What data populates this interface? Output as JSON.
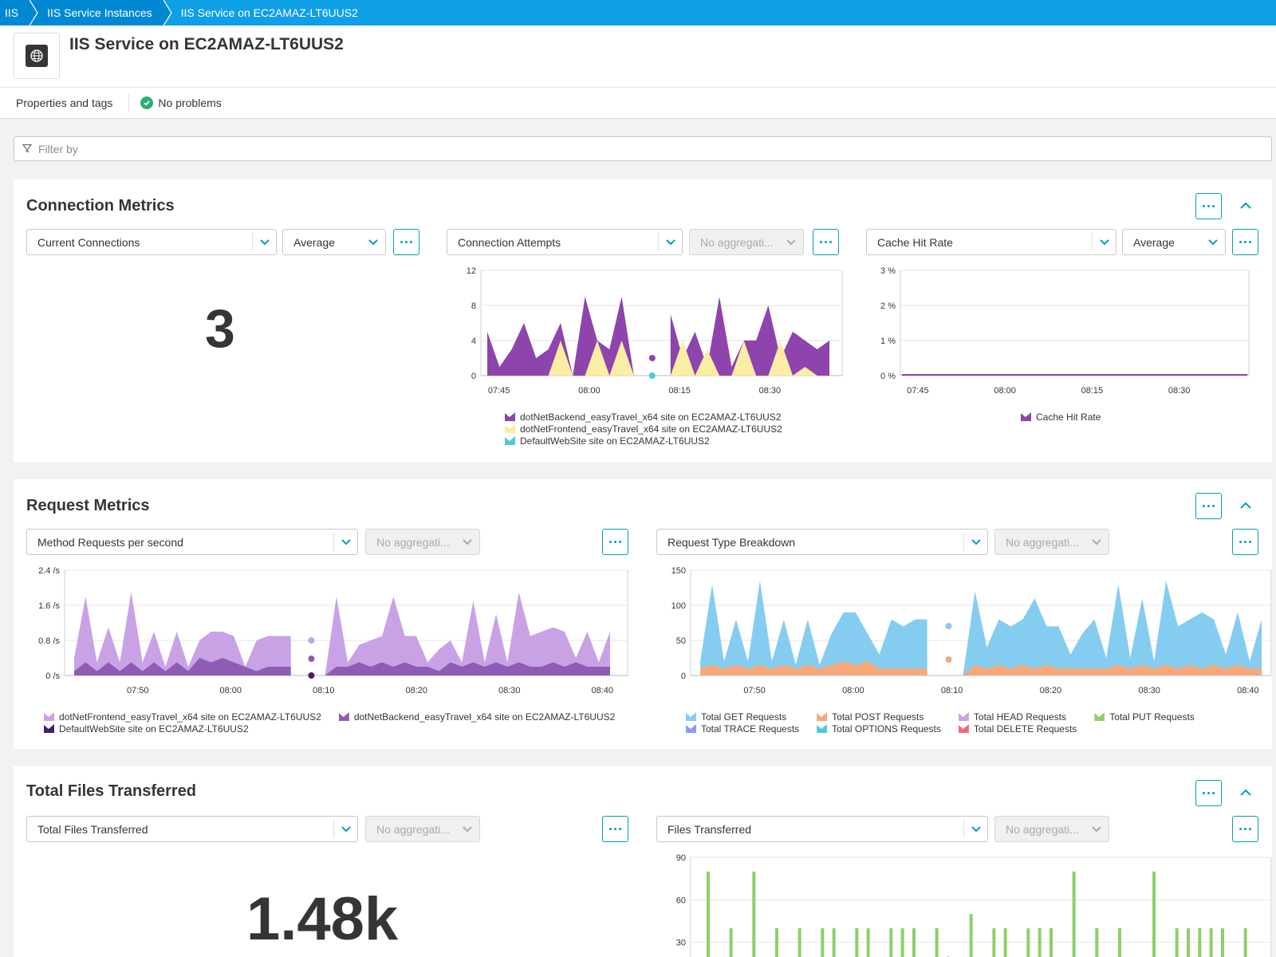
{
  "breadcrumb": [
    "IIS",
    "IIS Service Instances",
    "IIS Service on EC2AMAZ-LT6UUS2"
  ],
  "page": {
    "title": "IIS Service on EC2AMAZ-LT6UUS2",
    "icon": "globe-icon",
    "properties_label": "Properties and tags",
    "status_label": "No problems"
  },
  "filter": {
    "placeholder": "Filter by"
  },
  "colors": {
    "accent": "#00a1b2",
    "brand_blue": "#0089d2",
    "purple_dark": "#8e44ad",
    "purple_light": "#c9a2e6",
    "purple_deep": "#4a1a6e",
    "yellow": "#fbeda4",
    "cyan": "#4fc9da",
    "blue_light": "#85cdf0",
    "orange": "#f5a87a",
    "green": "#8dd068"
  },
  "sections": {
    "connection": {
      "title": "Connection Metrics",
      "panel1": {
        "metric": "Current Connections",
        "aggregation": "Average",
        "value": "3"
      },
      "panel2": {
        "metric": "Connection Attempts",
        "aggregation": "No aggregati..."
      },
      "panel3": {
        "metric": "Cache Hit Rate",
        "aggregation": "Average"
      }
    },
    "request": {
      "title": "Request Metrics",
      "panel1": {
        "metric": "Method Requests per second",
        "aggregation": "No aggregati..."
      },
      "panel2": {
        "metric": "Request Type Breakdown",
        "aggregation": "No aggregati..."
      }
    },
    "files": {
      "title": "Total Files Transferred",
      "panel1": {
        "metric": "Total Files Transferred",
        "aggregation": "No aggregati...",
        "value": "1.48k"
      },
      "panel2": {
        "metric": "Files Transferred",
        "aggregation": "No aggregati..."
      }
    }
  },
  "chart_data": [
    {
      "id": "connection_attempts",
      "type": "area",
      "x": [
        "07:45",
        "07:47",
        "07:49",
        "07:51",
        "07:53",
        "07:55",
        "07:57",
        "07:59",
        "08:01",
        "08:03",
        "08:05",
        "08:07",
        "08:09",
        "08:11",
        "08:13",
        "08:15",
        "08:17",
        "08:19",
        "08:21",
        "08:23",
        "08:25",
        "08:27",
        "08:29",
        "08:31",
        "08:33",
        "08:35",
        "08:37",
        "08:39",
        "08:41"
      ],
      "xticks": [
        "07:45",
        "08:00",
        "08:15",
        "08:30"
      ],
      "yticks": [
        "0",
        "4",
        "8",
        "12"
      ],
      "ylim": [
        0,
        12
      ],
      "series": [
        {
          "name": "dotNetBackend_easyTravel_x64 site on EC2AMAZ-LT6UUS2",
          "color": "#8e44ad",
          "values": [
            5,
            1,
            3,
            6,
            2,
            3,
            6,
            0,
            9,
            4,
            3,
            9,
            0,
            2,
            0,
            7,
            2,
            5,
            1,
            9,
            1,
            4,
            4,
            8,
            2,
            5,
            4,
            3,
            4
          ]
        },
        {
          "name": "dotNetFrontend_easyTravel_x64 site on EC2AMAZ-LT6UUS2",
          "color": "#fbeda4",
          "values": [
            0,
            0,
            0,
            0,
            0,
            0,
            4,
            0,
            0,
            4,
            0,
            4,
            0,
            0,
            0,
            0,
            4,
            0,
            3,
            0,
            0,
            4,
            0,
            0,
            4,
            0,
            1,
            0,
            0
          ]
        },
        {
          "name": "DefaultWebSite site on EC2AMAZ-LT6UUS2",
          "color": "#4fc9da",
          "values": [
            0,
            0,
            0,
            0,
            0,
            0,
            0,
            0,
            0,
            0,
            0,
            0,
            0,
            0,
            0,
            0,
            0,
            0,
            0,
            0,
            0,
            0,
            0,
            0,
            0,
            0,
            0,
            0,
            0
          ]
        }
      ]
    },
    {
      "id": "cache_hit_rate",
      "type": "line",
      "xticks": [
        "07:45",
        "08:00",
        "08:15",
        "08:30"
      ],
      "yticks": [
        "0 %",
        "1 %",
        "2 %",
        "3 %"
      ],
      "ylim": [
        0,
        3
      ],
      "series": [
        {
          "name": "Cache Hit Rate",
          "color": "#8e44ad",
          "values": [
            0,
            0,
            0,
            0,
            0,
            0,
            0,
            0,
            0,
            0
          ]
        }
      ]
    },
    {
      "id": "method_requests",
      "type": "area",
      "xticks": [
        "07:50",
        "08:00",
        "08:10",
        "08:20",
        "08:30",
        "08:40"
      ],
      "yticks": [
        "0 /s",
        "0.8 /s",
        "1.6 /s",
        "2.4 /s"
      ],
      "ylim": [
        0,
        2.4
      ],
      "series": [
        {
          "name": "dotNetFrontend_easyTravel_x64 site on EC2AMAZ-LT6UUS2",
          "color": "#c9a2e6",
          "values": [
            0.4,
            1.8,
            0.3,
            1.1,
            0.3,
            1.9,
            0.3,
            1.0,
            0.2,
            1.0,
            0.2,
            0.8,
            1.0,
            1.0,
            0.9,
            0.2,
            0.8,
            0.9,
            0.9,
            0.9,
            0.9,
            0.8,
            0.0,
            1.8,
            0.3,
            0.7,
            0.8,
            0.9,
            1.8,
            0.9,
            0.9,
            0.3,
            0.6,
            0.8,
            0.3,
            1.7,
            0.3,
            1.4,
            0.3,
            1.9,
            0.9,
            1.0,
            1.1,
            1.0,
            0.4,
            1.0,
            0.3,
            1.0
          ]
        },
        {
          "name": "dotNetBackend_easyTravel_x64 site on EC2AMAZ-LT6UUS2",
          "color": "#8e5bb5",
          "values": [
            0.1,
            0.3,
            0.1,
            0.3,
            0.1,
            0.3,
            0.1,
            0.3,
            0.1,
            0.3,
            0.1,
            0.4,
            0.3,
            0.4,
            0.3,
            0.2,
            0.1,
            0.2,
            0.2,
            0.2,
            0.2,
            0.2,
            0.0,
            0.2,
            0.2,
            0.3,
            0.2,
            0.3,
            0.2,
            0.3,
            0.2,
            0.2,
            0.1,
            0.3,
            0.2,
            0.3,
            0.2,
            0.3,
            0.2,
            0.3,
            0.2,
            0.2,
            0.3,
            0.2,
            0.3,
            0.2,
            0.2,
            0.2
          ]
        },
        {
          "name": "DefaultWebSite site on EC2AMAZ-LT6UUS2",
          "color": "#4a1a6e",
          "values": [
            0,
            0,
            0,
            0,
            0,
            0,
            0,
            0,
            0,
            0,
            0,
            0,
            0,
            0,
            0,
            0,
            0,
            0,
            0,
            0,
            0,
            0,
            0,
            0,
            0,
            0,
            0,
            0,
            0,
            0,
            0,
            0,
            0,
            0,
            0,
            0,
            0,
            0,
            0,
            0,
            0,
            0,
            0,
            0,
            0,
            0,
            0,
            0
          ]
        }
      ]
    },
    {
      "id": "request_type_breakdown",
      "type": "area",
      "xticks": [
        "07:50",
        "08:00",
        "08:10",
        "08:20",
        "08:30",
        "08:40"
      ],
      "yticks": [
        "0",
        "50",
        "100",
        "150"
      ],
      "ylim": [
        0,
        150
      ],
      "series": [
        {
          "name": "Total GET Requests",
          "color": "#85cdf0",
          "values": [
            20,
            130,
            20,
            80,
            20,
            135,
            20,
            80,
            15,
            80,
            15,
            60,
            90,
            90,
            60,
            30,
            80,
            70,
            80,
            80,
            80,
            60,
            0,
            120,
            40,
            80,
            70,
            80,
            110,
            70,
            70,
            30,
            60,
            80,
            25,
            130,
            25,
            110,
            20,
            135,
            70,
            80,
            90,
            80,
            30,
            90,
            20,
            80
          ]
        },
        {
          "name": "Total POST Requests",
          "color": "#f5a87a",
          "values": [
            10,
            15,
            10,
            15,
            10,
            15,
            10,
            15,
            10,
            15,
            10,
            15,
            20,
            15,
            20,
            10,
            10,
            10,
            10,
            10,
            10,
            10,
            0,
            15,
            10,
            15,
            10,
            15,
            10,
            15,
            10,
            10,
            10,
            10,
            10,
            15,
            10,
            15,
            10,
            15,
            10,
            15,
            10,
            15,
            10,
            15,
            10,
            10
          ]
        },
        {
          "name": "Total HEAD Requests",
          "color": "#c9a2e6",
          "values": []
        },
        {
          "name": "Total PUT Requests",
          "color": "#8dd068",
          "values": []
        },
        {
          "name": "Total TRACE Requests",
          "color": "#8a9ef0",
          "values": []
        },
        {
          "name": "Total OPTIONS Requests",
          "color": "#4fc9da",
          "values": []
        },
        {
          "name": "Total DELETE Requests",
          "color": "#ef6a7e",
          "values": []
        }
      ]
    },
    {
      "id": "files_transferred",
      "type": "bar",
      "yticks": [
        "30",
        "60",
        "90"
      ],
      "ylim": [
        0,
        90
      ],
      "series": [
        {
          "name": "Files Transferred",
          "color": "#8dd068",
          "values": [
            80,
            0,
            40,
            0,
            80,
            0,
            40,
            0,
            40,
            0,
            40,
            40,
            0,
            40,
            40,
            0,
            40,
            40,
            40,
            0,
            40,
            20,
            0,
            50,
            10,
            40,
            40,
            0,
            40,
            40,
            40,
            0,
            80,
            0,
            40,
            0,
            40,
            0,
            0,
            80,
            0,
            40,
            40,
            40,
            40,
            40,
            0,
            40
          ]
        }
      ]
    }
  ]
}
